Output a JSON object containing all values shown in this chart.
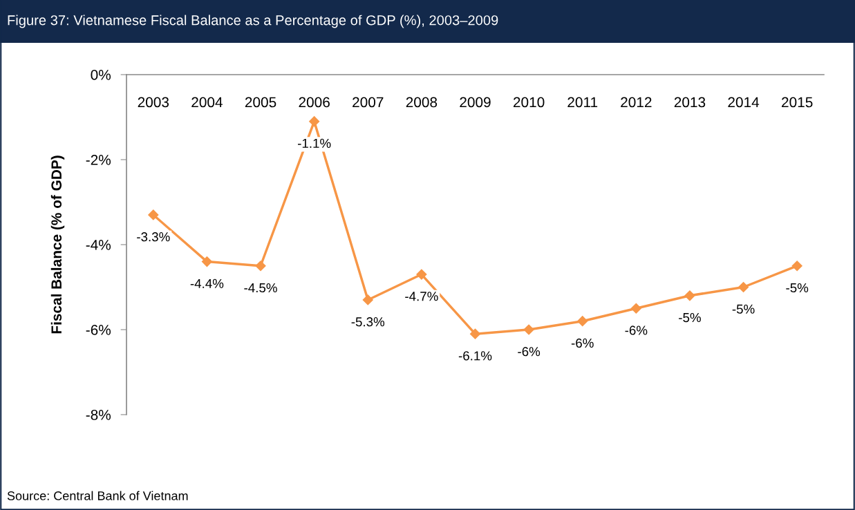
{
  "chart_data": {
    "type": "line",
    "title": "Figure 37: Vietnamese Fiscal Balance as a Percentage of GDP (%), 2003–2009",
    "ylabel": "Fiscal Balance (% of GDP)",
    "categories": [
      "2003",
      "2004",
      "2005",
      "2006",
      "2007",
      "2008",
      "2009",
      "2010",
      "2011",
      "2012",
      "2013",
      "2014",
      "2015"
    ],
    "series": [
      {
        "color": "#f79646",
        "values": [
          -3.3,
          -4.4,
          -4.5,
          -1.1,
          -5.3,
          -4.7,
          -6.1,
          -6.0,
          -5.8,
          -5.5,
          -5.2,
          -5.0,
          -4.5
        ],
        "value_labels": [
          "-3.3%",
          "-4.4%",
          "-4.5%",
          "-1.1%",
          "-5.3%",
          "-4.7%",
          "-6.1%",
          "-6%",
          "-6%",
          "-6%",
          "-5%",
          "-5%",
          "-5%"
        ]
      }
    ],
    "ylim": [
      -8,
      0
    ],
    "yticks": [
      {
        "value": 0,
        "label": "0%"
      },
      {
        "value": -2,
        "label": "-2%"
      },
      {
        "value": -4,
        "label": "-4%"
      },
      {
        "value": -6,
        "label": "-6%"
      },
      {
        "value": -8,
        "label": "-8%"
      }
    ],
    "marker": "diamond",
    "legend": false,
    "annotations": [
      "Source: Central Bank of Vietnam"
    ]
  }
}
